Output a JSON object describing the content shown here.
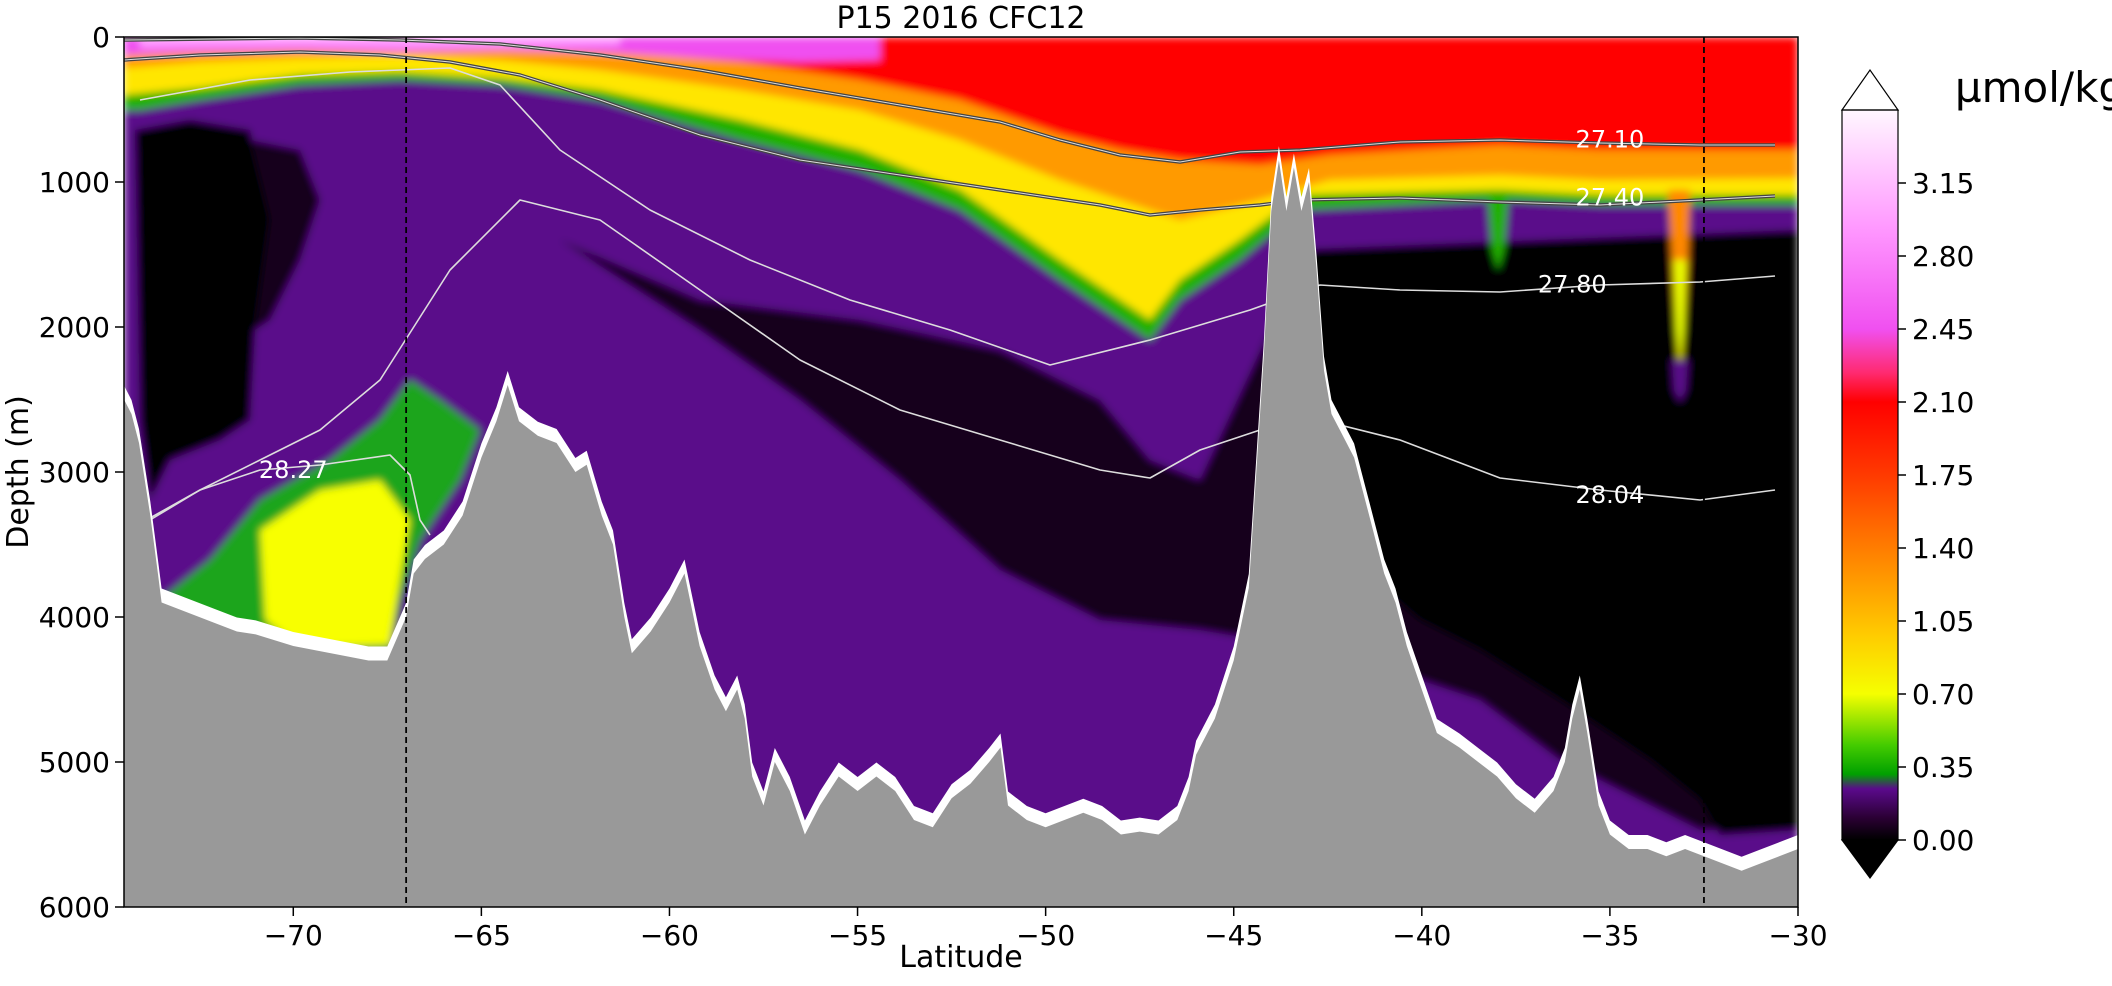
{
  "chart_data": {
    "type": "heatmap",
    "title": "P15 2016 CFC12",
    "xlabel": "Latitude",
    "ylabel": "Depth (m)",
    "xlim": [
      -74.5,
      -30
    ],
    "ylim": [
      6000,
      0
    ],
    "xticks": [
      -70,
      -65,
      -60,
      -55,
      -50,
      -45,
      -40,
      -35,
      -30
    ],
    "xtick_labels": [
      "−70",
      "−65",
      "−60",
      "−55",
      "−50",
      "−45",
      "−40",
      "−35",
      "−30"
    ],
    "yticks": [
      0,
      1000,
      2000,
      3000,
      4000,
      5000,
      6000
    ],
    "ytick_labels": [
      "0",
      "1000",
      "2000",
      "3000",
      "4000",
      "5000",
      "6000"
    ],
    "colorbar": {
      "units": "µmol/kg",
      "range": [
        0,
        3.5
      ],
      "ticks": [
        0.0,
        0.35,
        0.7,
        1.05,
        1.4,
        1.75,
        2.1,
        2.45,
        2.8,
        3.15
      ],
      "tick_labels": [
        "0.00",
        "0.35",
        "0.70",
        "1.05",
        "1.40",
        "1.75",
        "2.10",
        "2.45",
        "2.80",
        "3.15"
      ],
      "extend": "both"
    },
    "vertical_reference_lines": [
      -67,
      -32.5
    ],
    "isopycnal_labels": [
      {
        "label": "27.10",
        "lat": -35,
        "depth": 700
      },
      {
        "label": "27.40",
        "lat": -35,
        "depth": 1100
      },
      {
        "label": "27.80",
        "lat": -36,
        "depth": 1700
      },
      {
        "label": "28.04",
        "lat": -35,
        "depth": 3150
      },
      {
        "label": "28.27",
        "lat": -70,
        "depth": 2980
      }
    ]
  }
}
